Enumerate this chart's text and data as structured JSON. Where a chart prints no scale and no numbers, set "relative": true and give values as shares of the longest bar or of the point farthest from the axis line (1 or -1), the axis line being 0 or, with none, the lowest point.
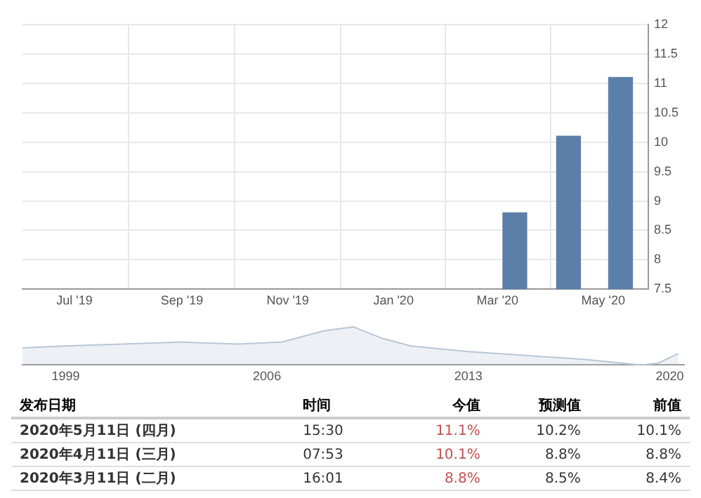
{
  "chart_data": [
    {
      "type": "bar",
      "x": [
        "2020-03-11",
        "2020-04-11",
        "2020-05-11"
      ],
      "values": [
        8.8,
        10.1,
        11.1
      ],
      "color": "#5b7fa8",
      "xlim": [
        "2019-06-01",
        "2020-05-27"
      ],
      "xticks": [
        {
          "value": "2019-07-01",
          "label": "Jul '19"
        },
        {
          "value": "2019-09-01",
          "label": "Sep '19"
        },
        {
          "value": "2019-11-01",
          "label": "Nov '19"
        },
        {
          "value": "2020-01-01",
          "label": "Jan '20"
        },
        {
          "value": "2020-03-01",
          "label": "Mar '20"
        },
        {
          "value": "2020-05-01",
          "label": "May '20"
        }
      ],
      "ylim": [
        7.5,
        12
      ],
      "yticks": [
        7.5,
        8,
        8.5,
        9,
        9.5,
        10,
        10.5,
        11,
        11.5,
        12
      ],
      "grid": true,
      "legend": false
    },
    {
      "type": "line",
      "relative": true,
      "x": [
        1997.5,
        1999,
        2001,
        2003,
        2005,
        2006.5,
        2008,
        2009,
        2010,
        2011,
        2013,
        2015,
        2017,
        2019,
        2019.6,
        2020.3
      ],
      "values": [
        0.45,
        0.5,
        0.55,
        0.6,
        0.55,
        0.6,
        0.9,
        1.0,
        0.7,
        0.5,
        0.35,
        0.25,
        0.15,
        0.0,
        0.05,
        0.3
      ],
      "color": "#b9c6d6",
      "xlim": [
        1997.5,
        2020.5
      ],
      "xticks": [
        1999,
        2006,
        2013,
        2020
      ],
      "grid": false,
      "legend": false
    },
    {
      "type": "other",
      "categories": [
        "发布日期",
        "时间",
        "今值",
        "预测值",
        "前值"
      ],
      "annotations": [
        "2020年5月11日 (四月)",
        "15:30",
        "11.1%",
        "10.2%",
        "10.1%",
        "2020年4月11日 (三月)",
        "07:53",
        "10.1%",
        "8.8%",
        "8.8%",
        "2020年3月11日 (二月)",
        "16:01",
        "8.8%",
        "8.5%",
        "8.4%"
      ]
    }
  ]
}
